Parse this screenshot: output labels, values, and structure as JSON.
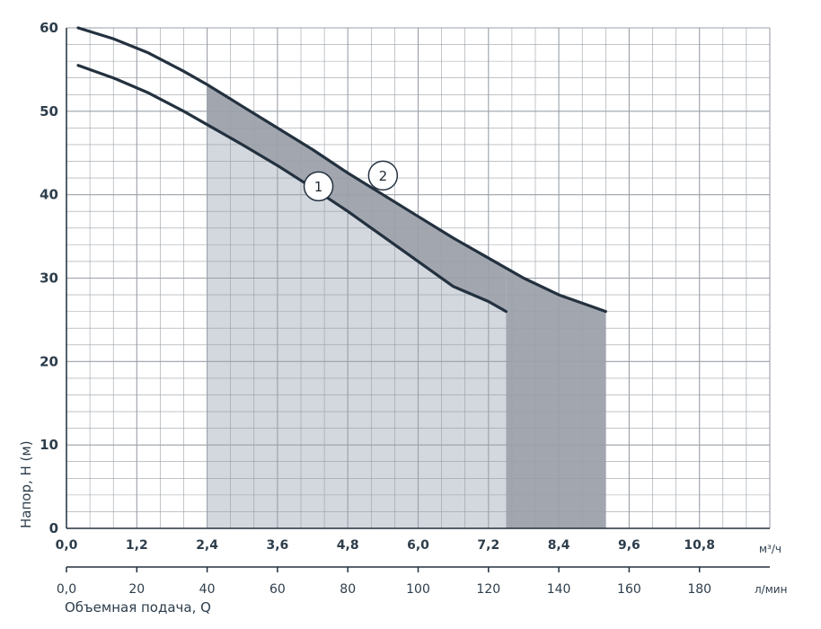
{
  "chart_data": {
    "type": "line",
    "ylabel": "Напор, H (м)",
    "xlabel": "Объемная подача, Q",
    "x_unit": "м³/ч",
    "x2_unit": "л/мин",
    "xlim": [
      0,
      12.0
    ],
    "ylim": [
      0,
      60
    ],
    "grid": true,
    "y_major_ticks": [
      0,
      10,
      20,
      30,
      40,
      50,
      60
    ],
    "y_tick_labels": [
      "0",
      "10",
      "20",
      "30",
      "40",
      "50",
      "60"
    ],
    "x_major_ticks": [
      0,
      1.2,
      2.4,
      3.6,
      4.8,
      6.0,
      7.2,
      8.4,
      9.6,
      10.8
    ],
    "x_tick_labels": [
      "0,0",
      "1,2",
      "2,4",
      "3,6",
      "4,8",
      "6,0",
      "7,2",
      "8,4",
      "9,6",
      "10,8"
    ],
    "x2_ticks": [
      0,
      20,
      40,
      60,
      80,
      100,
      120,
      140,
      160,
      180
    ],
    "x2_tick_labels": [
      "0,0",
      "20",
      "40",
      "60",
      "80",
      "100",
      "120",
      "140",
      "160",
      "180"
    ],
    "series": [
      {
        "name": "1",
        "x": [
          0.2,
          0.8,
          1.4,
          2.0,
          2.4,
          3.0,
          3.6,
          4.2,
          4.8,
          5.4,
          6.0,
          6.6,
          7.2,
          7.5
        ],
        "y": [
          55.5,
          54.0,
          52.2,
          50.0,
          48.4,
          46.0,
          43.5,
          40.8,
          38.0,
          35.0,
          32.0,
          29.0,
          27.2,
          26.0
        ]
      },
      {
        "name": "2",
        "x": [
          0.2,
          0.8,
          1.4,
          2.0,
          2.4,
          3.0,
          3.6,
          4.2,
          4.8,
          5.4,
          6.0,
          6.6,
          7.2,
          7.8,
          8.4,
          9.0,
          9.2
        ],
        "y": [
          60.0,
          58.7,
          57.0,
          54.8,
          53.2,
          50.6,
          48.0,
          45.4,
          42.6,
          40.0,
          37.4,
          34.8,
          32.4,
          30.0,
          28.0,
          26.5,
          26.0
        ]
      }
    ],
    "shaded_regions": [
      {
        "x": [
          2.4,
          7.5
        ],
        "color": "#d3d7de"
      },
      {
        "x": [
          7.5,
          9.2
        ],
        "color": "#a2a6af"
      },
      {
        "between_series": [
          "1",
          "2"
        ],
        "x": [
          2.4,
          7.5
        ],
        "color": "#a2a6af"
      }
    ],
    "curve_markers": [
      {
        "label": "1",
        "x": 4.3,
        "y": 41.0
      },
      {
        "label": "2",
        "x": 5.4,
        "y": 42.3
      }
    ],
    "colors": {
      "curve": "#23313f",
      "grid": "#9aa0a8",
      "axis": "#23313f",
      "light_fill": "#d3d7de",
      "dark_fill": "#a2a6af"
    }
  }
}
